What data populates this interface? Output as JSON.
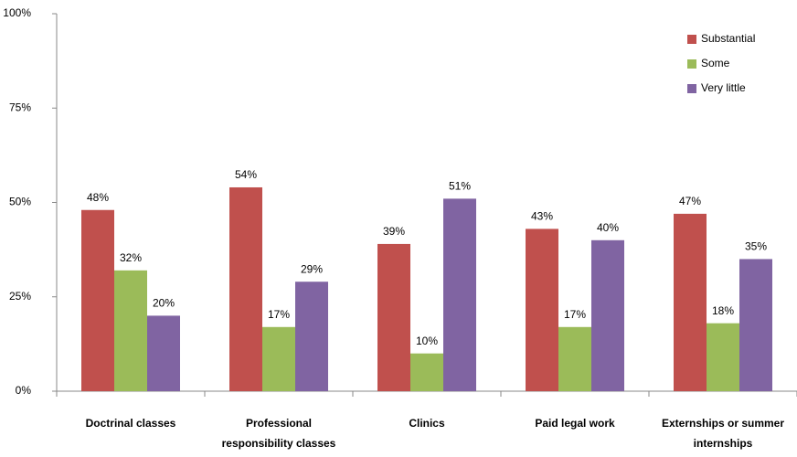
{
  "chart_data": {
    "type": "bar",
    "categories": [
      "Doctrinal classes",
      "Professional responsibility classes",
      "Clinics",
      "Paid legal work",
      "Externships or summer internships"
    ],
    "series": [
      {
        "name": "Substantial",
        "color": "#c0504d",
        "values": [
          48,
          54,
          39,
          43,
          47
        ],
        "value_labels": [
          "48%",
          "54%",
          "39%",
          "43%",
          "47%"
        ]
      },
      {
        "name": "Some",
        "color": "#9bbb59",
        "values": [
          32,
          17,
          10,
          17,
          18
        ],
        "value_labels": [
          "32%",
          "17%",
          "10%",
          "17%",
          "18%"
        ]
      },
      {
        "name": "Very little",
        "color": "#8064a2",
        "values": [
          20,
          29,
          51,
          40,
          35
        ],
        "value_labels": [
          "20%",
          "29%",
          "51%",
          "40%",
          "35%"
        ]
      }
    ],
    "ylim": [
      0,
      100
    ],
    "yticks": [
      {
        "value": 0,
        "label": "0%"
      },
      {
        "value": 25,
        "label": "25%"
      },
      {
        "value": 50,
        "label": "50%"
      },
      {
        "value": 75,
        "label": "75%"
      },
      {
        "value": 100,
        "label": "100%"
      }
    ],
    "grid": false,
    "legend": "top-right"
  }
}
